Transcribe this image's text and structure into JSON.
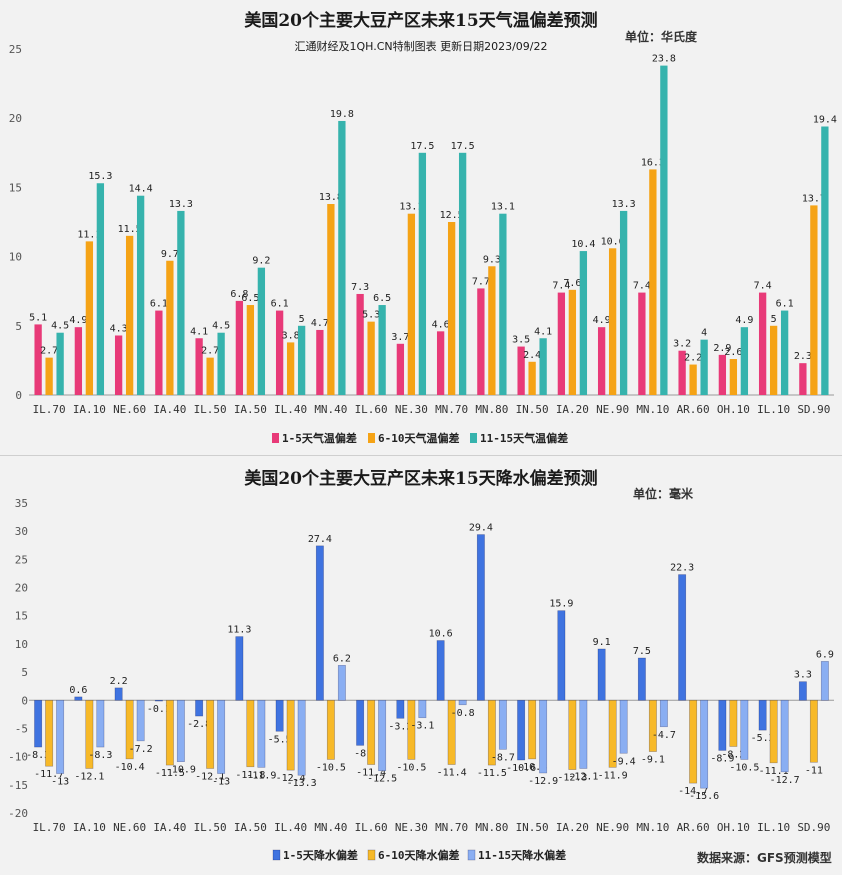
{
  "chart_data": [
    {
      "type": "bar",
      "title": "美国20个主要大豆产区未来15天气温偏差预测",
      "subtitle": "汇通财经及1QH.CN特制图表 更新日期2023/09/22",
      "unit": "单位：华氏度",
      "categories": [
        "IL.70",
        "IA.10",
        "NE.60",
        "IA.40",
        "IL.50",
        "IA.50",
        "IL.40",
        "MN.40",
        "IL.60",
        "NE.30",
        "MN.70",
        "MN.80",
        "IN.50",
        "IA.20",
        "NE.90",
        "MN.10",
        "AR.60",
        "OH.10",
        "IL.10",
        "SD.90"
      ],
      "series": [
        {
          "name": "1-5天气温偏差",
          "color": "#e83a78",
          "values": [
            5.1,
            4.9,
            4.3,
            6.1,
            4.1,
            6.8,
            6.1,
            4.7,
            7.3,
            3.7,
            4.6,
            7.7,
            3.5,
            7.4,
            4.9,
            7.4,
            3.2,
            2.9,
            7.4,
            2.3
          ]
        },
        {
          "name": "6-10天气温偏差",
          "color": "#f5a316",
          "values": [
            2.7,
            11.1,
            11.5,
            9.7,
            2.7,
            6.5,
            3.8,
            13.8,
            5.3,
            13.1,
            12.5,
            9.3,
            2.4,
            7.6,
            10.6,
            16.3,
            2.2,
            2.6,
            5,
            13.7
          ]
        },
        {
          "name": "11-15天气温偏差",
          "color": "#36b3ad",
          "values": [
            4.5,
            15.3,
            14.4,
            13.3,
            4.5,
            9.2,
            5,
            19.8,
            6.5,
            17.5,
            17.5,
            13.1,
            4.1,
            10.4,
            13.3,
            23.8,
            4,
            4.9,
            6.1,
            19.4
          ]
        }
      ],
      "yticks": [
        0,
        5,
        10,
        15,
        20,
        25
      ],
      "ylim": [
        0,
        25
      ],
      "legend": "bottom"
    },
    {
      "type": "bar",
      "title": "美国20个主要大豆产区未来15天降水偏差预测",
      "unit": "单位：毫米",
      "source": "数据来源：GFS预测模型",
      "categories": [
        "IL.70",
        "IA.10",
        "NE.60",
        "IA.40",
        "IL.50",
        "IA.50",
        "IL.40",
        "MN.40",
        "IL.60",
        "NE.30",
        "MN.70",
        "MN.80",
        "IN.50",
        "IA.20",
        "NE.90",
        "MN.10",
        "AR.60",
        "OH.10",
        "IL.10",
        "SD.90"
      ],
      "series": [
        {
          "name": "1-5天降水偏差",
          "color": "#3f73e0",
          "values": [
            -8.3,
            0.6,
            2.2,
            -0.1,
            -2.8,
            11.3,
            -5.5,
            27.4,
            -8,
            -3.2,
            10.6,
            29.4,
            -10.6,
            15.9,
            9.1,
            7.5,
            22.3,
            -8.9,
            -5.3,
            3.3
          ]
        },
        {
          "name": "6-10天降水偏差",
          "color": "#f7b928",
          "values": [
            -11.7,
            -12.1,
            -10.4,
            -11.5,
            -12.1,
            -11.8,
            -12.4,
            -10.5,
            -11.4,
            -10.5,
            -11.4,
            -11.5,
            -10.4,
            -12.3,
            -11.9,
            -9.1,
            -14.7,
            -8.2,
            -11.1,
            -11
          ]
        },
        {
          "name": "11-15天降水偏差",
          "color": "#8aaef2",
          "values": [
            -13,
            -8.3,
            -7.2,
            -10.9,
            -13,
            -11.9,
            -13.3,
            6.2,
            -12.5,
            -3.1,
            -0.8,
            -8.7,
            -12.9,
            -12.1,
            -9.4,
            -4.7,
            -15.6,
            -10.5,
            -12.7,
            6.9
          ]
        }
      ],
      "yticks": [
        -20,
        -15,
        -10,
        -5,
        0,
        5,
        10,
        15,
        20,
        25,
        30,
        35
      ],
      "ylim": [
        -20,
        35
      ],
      "legend": "bottom"
    }
  ]
}
